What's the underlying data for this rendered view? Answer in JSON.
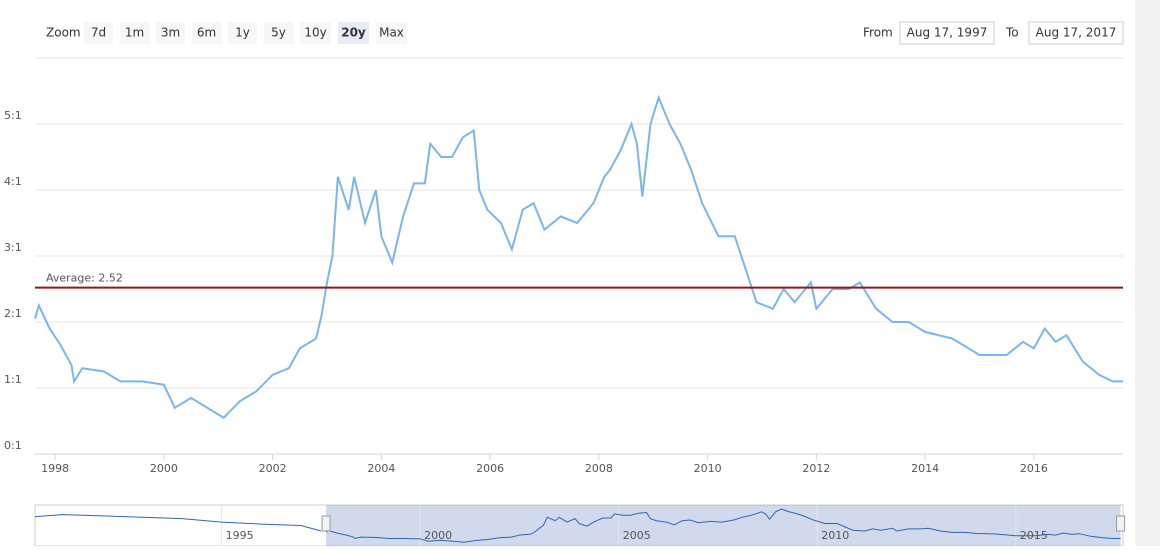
{
  "range_selector": {
    "zoom_label": "Zoom",
    "buttons": [
      "7d",
      "1m",
      "3m",
      "6m",
      "1y",
      "5y",
      "10y",
      "20y",
      "Max"
    ],
    "selected": 7,
    "from_label": "From",
    "from": "Aug 17, 1997",
    "to_label": "To",
    "to": "Aug 17, 2017"
  },
  "chart_data": {
    "type": "line",
    "xlim": [
      1997.63,
      2017.64
    ],
    "ylim": [
      0,
      6
    ],
    "yticks": [
      {
        "value": 0,
        "label": "0:1"
      },
      {
        "value": 1,
        "label": "1:1"
      },
      {
        "value": 2,
        "label": "2:1"
      },
      {
        "value": 3,
        "label": "3:1"
      },
      {
        "value": 4,
        "label": "4:1"
      },
      {
        "value": 5,
        "label": "5:1"
      }
    ],
    "xticks": [
      1998,
      2000,
      2002,
      2004,
      2006,
      2008,
      2010,
      2012,
      2014,
      2016
    ],
    "grid": true,
    "average": {
      "value": 2.52,
      "label": "Average: 2.52",
      "color": "#8b1a1a"
    },
    "x": [
      1997.63,
      1997.7,
      1997.9,
      1998.1,
      1998.3,
      1998.35,
      1998.5,
      1998.9,
      1999.2,
      1999.6,
      2000.0,
      2000.2,
      2000.5,
      2000.9,
      2001.1,
      2001.4,
      2001.7,
      2002.0,
      2002.3,
      2002.5,
      2002.8,
      2002.9,
      2003.0,
      2003.1,
      2003.2,
      2003.4,
      2003.5,
      2003.7,
      2003.9,
      2004.0,
      2004.2,
      2004.4,
      2004.6,
      2004.8,
      2004.9,
      2005.1,
      2005.3,
      2005.5,
      2005.7,
      2005.8,
      2005.95,
      2006.2,
      2006.4,
      2006.6,
      2006.8,
      2007.0,
      2007.3,
      2007.6,
      2007.9,
      2008.1,
      2008.2,
      2008.4,
      2008.6,
      2008.7,
      2008.8,
      2008.95,
      2009.1,
      2009.3,
      2009.5,
      2009.7,
      2009.9,
      2010.2,
      2010.5,
      2010.7,
      2010.9,
      2011.2,
      2011.4,
      2011.6,
      2011.9,
      2012.0,
      2012.3,
      2012.6,
      2012.8,
      2013.1,
      2013.4,
      2013.7,
      2014.0,
      2014.5,
      2015.0,
      2015.5,
      2015.8,
      2016.0,
      2016.2,
      2016.4,
      2016.6,
      2016.9,
      2017.2,
      2017.45,
      2017.64
    ],
    "series": [
      {
        "name": "Ratio",
        "color": "#7cb5ec",
        "values": [
          2.05,
          2.25,
          1.9,
          1.65,
          1.35,
          1.1,
          1.3,
          1.25,
          1.1,
          1.1,
          1.05,
          0.7,
          0.85,
          0.65,
          0.55,
          0.8,
          0.95,
          1.2,
          1.3,
          1.6,
          1.75,
          2.1,
          2.6,
          3.0,
          4.2,
          3.7,
          4.2,
          3.5,
          4.0,
          3.3,
          2.9,
          3.6,
          4.1,
          4.1,
          4.7,
          4.5,
          4.5,
          4.8,
          4.9,
          4.0,
          3.7,
          3.5,
          3.1,
          3.7,
          3.8,
          3.4,
          3.6,
          3.5,
          3.8,
          4.2,
          4.3,
          4.6,
          5.0,
          4.7,
          3.9,
          5.0,
          5.4,
          5.0,
          4.7,
          4.3,
          3.8,
          3.3,
          3.3,
          2.8,
          2.3,
          2.2,
          2.5,
          2.3,
          2.6,
          2.2,
          2.5,
          2.5,
          2.6,
          2.2,
          2.0,
          2.0,
          1.85,
          1.75,
          1.5,
          1.5,
          1.7,
          1.6,
          1.9,
          1.7,
          1.8,
          1.4,
          1.2,
          1.1,
          1.1
        ]
      }
    ]
  },
  "navigator": {
    "xlim": [
      1990.3,
      2017.7
    ],
    "ylim": [
      0,
      6
    ],
    "xticks": [
      1995,
      2000,
      2005,
      2010,
      2015
    ],
    "x": [
      1990.3,
      1991,
      1992,
      1993,
      1994,
      1995,
      1996,
      1997,
      1997.5
    ],
    "values": [
      4.3,
      4.6,
      4.4,
      4.2,
      4.0,
      3.5,
      3.2,
      3.0,
      2.2
    ]
  }
}
